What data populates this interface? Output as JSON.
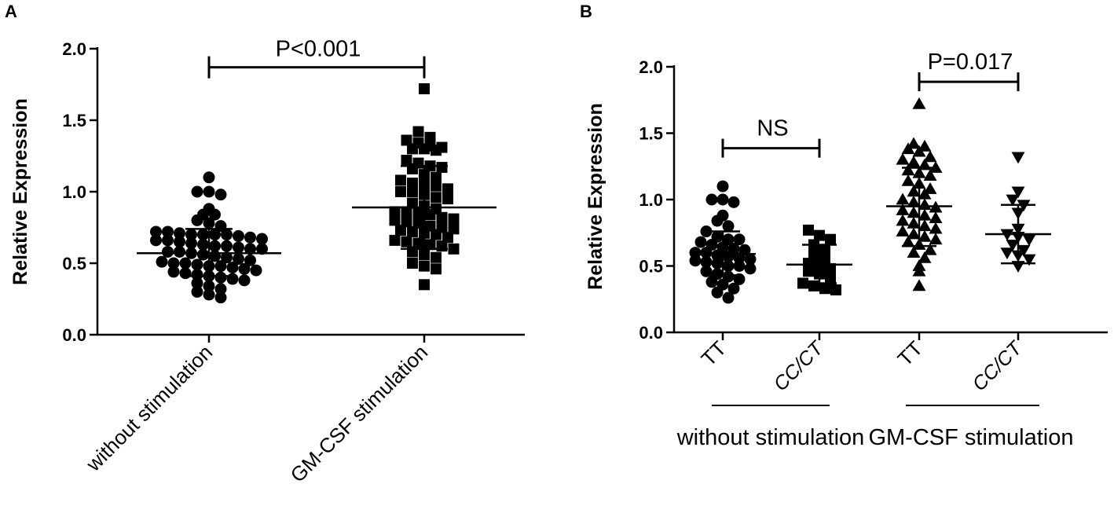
{
  "chart_data": [
    {
      "panel": "A",
      "type": "scatter",
      "ylabel": "Relative Expression",
      "ylim": [
        0.0,
        2.0
      ],
      "yticks": [
        "0.0",
        "0.5",
        "1.0",
        "1.5",
        "2.0"
      ],
      "categories": [
        "without stimulation",
        "GM-CSF stimulation"
      ],
      "series": [
        {
          "category": "without stimulation",
          "marker": "circle",
          "mean": 0.57,
          "sd_low": 0.41,
          "sd_high": 0.74,
          "values": [
            1.1,
            1.0,
            1.0,
            0.98,
            0.88,
            0.84,
            0.84,
            0.8,
            0.78,
            0.76,
            0.72,
            0.72,
            0.71,
            0.7,
            0.7,
            0.7,
            0.7,
            0.69,
            0.68,
            0.67,
            0.66,
            0.66,
            0.65,
            0.64,
            0.63,
            0.62,
            0.62,
            0.61,
            0.6,
            0.6,
            0.58,
            0.58,
            0.57,
            0.56,
            0.55,
            0.54,
            0.53,
            0.52,
            0.51,
            0.5,
            0.5,
            0.49,
            0.48,
            0.48,
            0.47,
            0.46,
            0.45,
            0.44,
            0.43,
            0.42,
            0.41,
            0.4,
            0.39,
            0.38,
            0.36,
            0.34,
            0.32,
            0.3,
            0.28,
            0.26
          ]
        },
        {
          "category": "GM-CSF stimulation",
          "marker": "square",
          "mean": 0.89,
          "sd_low": 0.6,
          "sd_high": 1.18,
          "values": [
            1.72,
            1.42,
            1.38,
            1.36,
            1.34,
            1.32,
            1.31,
            1.3,
            1.3,
            1.29,
            1.22,
            1.2,
            1.18,
            1.17,
            1.16,
            1.12,
            1.1,
            1.08,
            1.06,
            1.05,
            1.04,
            1.02,
            1.0,
            1.0,
            0.98,
            0.96,
            0.95,
            0.92,
            0.9,
            0.88,
            0.86,
            0.86,
            0.85,
            0.84,
            0.82,
            0.81,
            0.8,
            0.79,
            0.78,
            0.76,
            0.75,
            0.74,
            0.73,
            0.72,
            0.71,
            0.7,
            0.68,
            0.66,
            0.65,
            0.64,
            0.63,
            0.62,
            0.6,
            0.58,
            0.56,
            0.54,
            0.5,
            0.48,
            0.46,
            0.35
          ]
        }
      ],
      "annotations": [
        {
          "text": "P<0.001",
          "between": [
            0,
            1
          ],
          "y": 1.87
        }
      ]
    },
    {
      "panel": "B",
      "type": "scatter",
      "ylabel": "Relative Expression",
      "ylim": [
        0.0,
        2.0
      ],
      "yticks": [
        "0.0",
        "0.5",
        "1.0",
        "1.5",
        "2.0"
      ],
      "categories": [
        "TT",
        "CC/CT",
        "TT",
        "CC/CT"
      ],
      "groups": [
        {
          "label": "without stimulation",
          "span": [
            0,
            1
          ]
        },
        {
          "label": "GM-CSF stimulation",
          "span": [
            2,
            3
          ]
        }
      ],
      "series": [
        {
          "category": "TT",
          "group": "without stimulation",
          "marker": "circle",
          "mean": 0.59,
          "sd_low": 0.43,
          "sd_high": 0.76,
          "values": [
            1.1,
            1.0,
            1.0,
            0.98,
            0.88,
            0.84,
            0.8,
            0.76,
            0.72,
            0.7,
            0.7,
            0.68,
            0.66,
            0.64,
            0.63,
            0.62,
            0.6,
            0.6,
            0.58,
            0.57,
            0.56,
            0.55,
            0.54,
            0.53,
            0.52,
            0.5,
            0.5,
            0.48,
            0.46,
            0.44,
            0.42,
            0.4,
            0.38,
            0.36,
            0.33,
            0.3,
            0.26
          ]
        },
        {
          "category": "CC/CT",
          "group": "without stimulation",
          "marker": "square",
          "mean": 0.51,
          "sd_low": 0.37,
          "sd_high": 0.66,
          "values": [
            0.77,
            0.73,
            0.7,
            0.66,
            0.62,
            0.58,
            0.56,
            0.52,
            0.5,
            0.48,
            0.46,
            0.44,
            0.4,
            0.37,
            0.35,
            0.33,
            0.32
          ]
        },
        {
          "category": "TT",
          "group": "GM-CSF stimulation",
          "marker": "triangle-up",
          "mean": 0.95,
          "sd_low": 0.65,
          "sd_high": 1.24,
          "values": [
            1.72,
            1.42,
            1.4,
            1.38,
            1.36,
            1.32,
            1.3,
            1.28,
            1.26,
            1.24,
            1.22,
            1.2,
            1.18,
            1.14,
            1.12,
            1.08,
            1.06,
            1.04,
            1.0,
            0.98,
            0.96,
            0.94,
            0.92,
            0.9,
            0.88,
            0.86,
            0.84,
            0.82,
            0.8,
            0.78,
            0.76,
            0.74,
            0.72,
            0.7,
            0.68,
            0.66,
            0.62,
            0.6,
            0.56,
            0.5,
            0.46,
            0.35
          ]
        },
        {
          "category": "CC/CT",
          "group": "GM-CSF stimulation",
          "marker": "triangle-down",
          "mean": 0.74,
          "sd_low": 0.52,
          "sd_high": 0.96,
          "values": [
            1.32,
            1.06,
            1.0,
            0.96,
            0.9,
            0.78,
            0.74,
            0.72,
            0.7,
            0.66,
            0.62,
            0.6,
            0.58,
            0.55,
            0.5
          ]
        }
      ],
      "annotations": [
        {
          "text": "NS",
          "between": [
            0,
            1
          ],
          "y": 1.47
        },
        {
          "text": "P=0.017",
          "between": [
            2,
            3
          ],
          "y": 1.97
        }
      ]
    }
  ],
  "panels": {
    "a": "A",
    "b": "B"
  }
}
